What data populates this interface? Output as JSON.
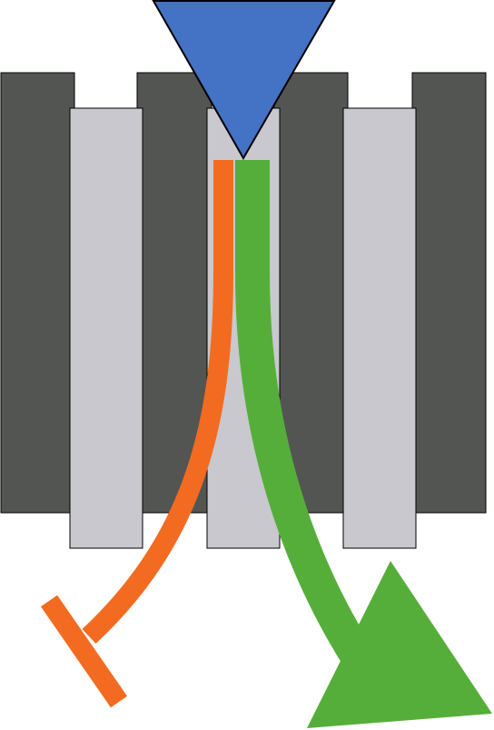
{
  "colors": {
    "dark_bar": "#535553",
    "light_bar": "#c8c8ce",
    "triangle": "#4472c4",
    "inhibition_arrow": "#f26b21",
    "activation_arrow": "#56ae3a",
    "outline": "#000000"
  },
  "elements": {
    "dark_bars_count": 4,
    "light_bars_count": 3,
    "top_marker": "downward-triangle",
    "left_arrow": "orange-curved-blunt-arrow",
    "right_arrow": "green-curved-pointed-arrow"
  }
}
